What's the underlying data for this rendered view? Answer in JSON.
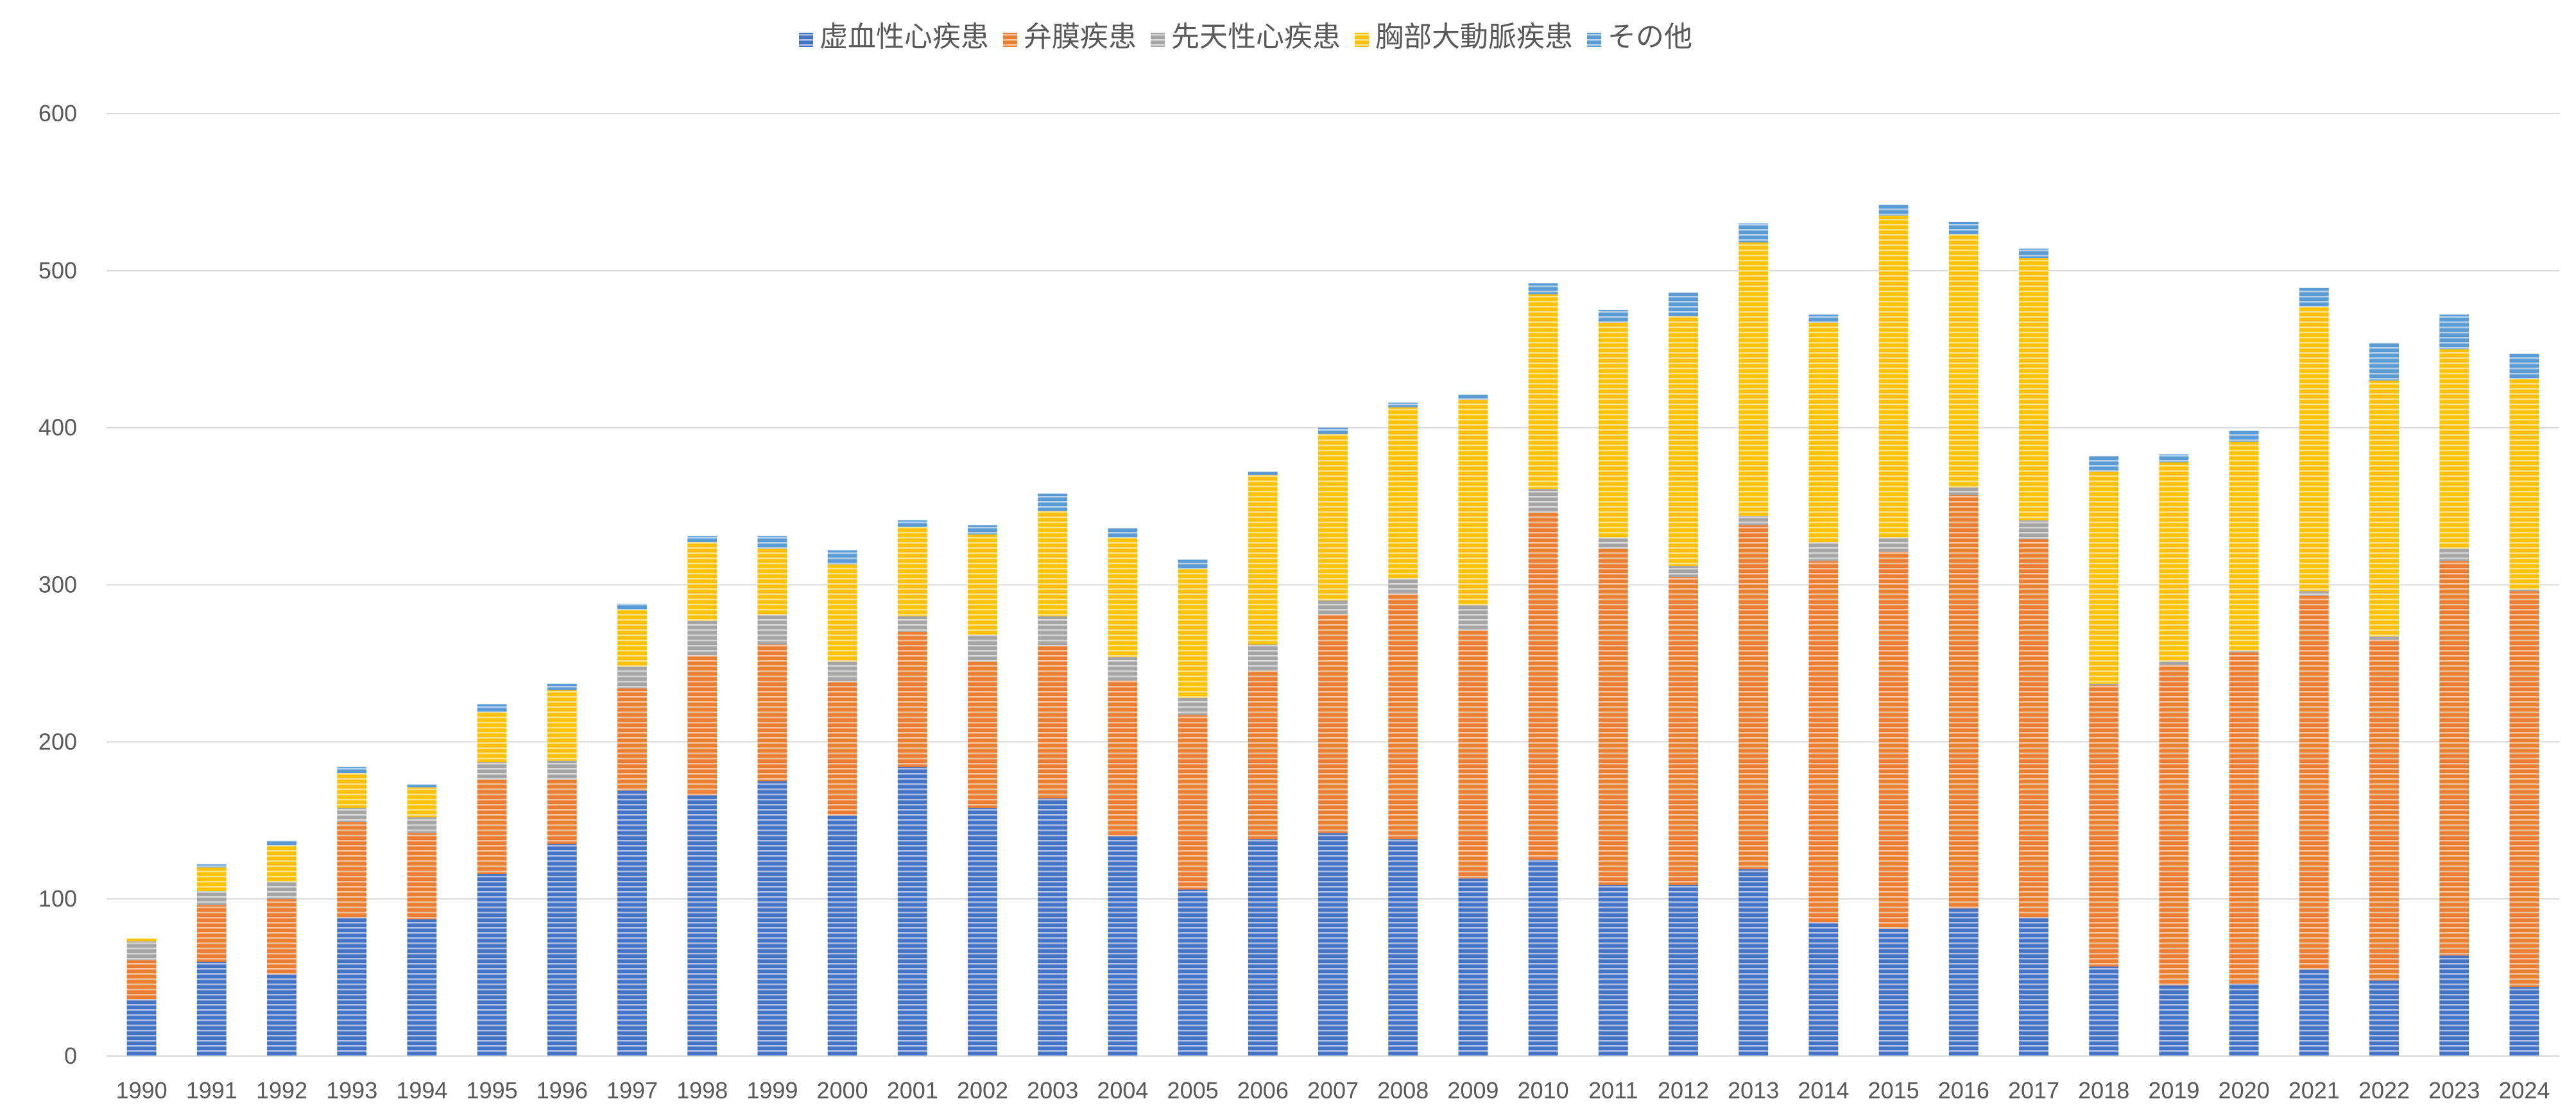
{
  "chart_data": {
    "type": "bar",
    "stacked": true,
    "title": "",
    "xlabel": "",
    "ylabel": "",
    "ylim": [
      0,
      600
    ],
    "yticks": [
      0,
      100,
      200,
      300,
      400,
      500,
      600
    ],
    "grid": true,
    "legend_position": "top",
    "categories": [
      "1990",
      "1991",
      "1992",
      "1993",
      "1994",
      "1995",
      "1996",
      "1997",
      "1998",
      "1999",
      "2000",
      "2001",
      "2002",
      "2003",
      "2004",
      "2005",
      "2006",
      "2007",
      "2008",
      "2009",
      "2010",
      "2011",
      "2012",
      "2013",
      "2014",
      "2015",
      "2016",
      "2017",
      "2018",
      "2019",
      "2020",
      "2021",
      "2022",
      "2023",
      "2024"
    ],
    "series": [
      {
        "name": "虚血性心疾患",
        "color": "#4472C4",
        "values": [
          36,
          60,
          52,
          88,
          87,
          116,
          135,
          169,
          166,
          175,
          153,
          184,
          158,
          164,
          140,
          106,
          138,
          142,
          138,
          113,
          125,
          109,
          109,
          119,
          85,
          81,
          94,
          88,
          57,
          45,
          46,
          55,
          48,
          64,
          44
        ]
      },
      {
        "name": "弁膜疾患",
        "color": "#ED7D31",
        "values": [
          25,
          36,
          48,
          61,
          55,
          60,
          41,
          65,
          89,
          87,
          85,
          86,
          93,
          97,
          99,
          111,
          107,
          139,
          156,
          158,
          221,
          214,
          196,
          219,
          230,
          240,
          263,
          241,
          179,
          204,
          211,
          238,
          217,
          251,
          252
        ]
      },
      {
        "name": "先天性心疾患",
        "color": "#A5A5A5",
        "values": [
          12,
          9,
          11,
          9,
          10,
          11,
          12,
          14,
          22,
          19,
          13,
          10,
          17,
          19,
          15,
          11,
          17,
          9,
          10,
          16,
          15,
          7,
          7,
          6,
          12,
          9,
          5,
          12,
          1,
          2,
          1,
          3,
          2,
          8,
          1
        ]
      },
      {
        "name": "胸部大動脈疾患",
        "color": "#FFC000",
        "values": [
          2,
          15,
          23,
          22,
          19,
          32,
          45,
          36,
          50,
          42,
          62,
          57,
          64,
          67,
          76,
          82,
          108,
          106,
          109,
          131,
          124,
          137,
          159,
          174,
          140,
          205,
          161,
          167,
          135,
          127,
          133,
          181,
          163,
          127,
          134
        ]
      },
      {
        "name": "その他",
        "color": "#5B9BD5",
        "values": [
          0,
          2,
          3,
          4,
          2,
          5,
          4,
          4,
          4,
          8,
          9,
          4,
          6,
          11,
          6,
          6,
          2,
          4,
          3,
          3,
          7,
          8,
          15,
          12,
          5,
          7,
          8,
          6,
          10,
          5,
          7,
          12,
          24,
          22,
          16
        ]
      }
    ]
  }
}
